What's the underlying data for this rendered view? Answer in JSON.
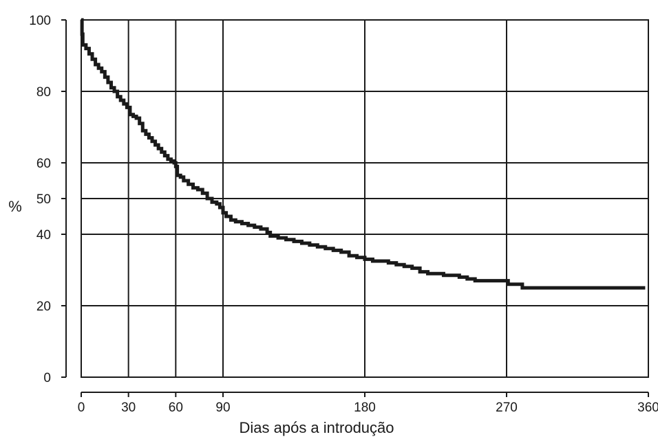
{
  "chart_data": {
    "type": "line",
    "title": "",
    "xlabel": "Dias após a introdução",
    "ylabel": "%",
    "xlim": [
      0,
      360
    ],
    "ylim": [
      0,
      100
    ],
    "x_gridlines": [
      30,
      60,
      90,
      180,
      270
    ],
    "y_gridlines": [
      20,
      40,
      50,
      60,
      80
    ],
    "grid": true,
    "legend": "none",
    "xticks": [
      {
        "value": 0,
        "label": "0"
      },
      {
        "value": 30,
        "label": "30"
      },
      {
        "value": 60,
        "label": "60"
      },
      {
        "value": 90,
        "label": "90"
      },
      {
        "value": 180,
        "label": "180"
      },
      {
        "value": 270,
        "label": "270"
      },
      {
        "value": 360,
        "label": "360"
      }
    ],
    "yticks": [
      {
        "value": 0,
        "label": "0"
      },
      {
        "value": 20,
        "label": "20"
      },
      {
        "value": 40,
        "label": "40"
      },
      {
        "value": 50,
        "label": "50"
      },
      {
        "value": 60,
        "label": "60"
      },
      {
        "value": 80,
        "label": "80"
      },
      {
        "value": 100,
        "label": "100"
      }
    ],
    "series": [
      {
        "color": "#1a1a1a",
        "step": true,
        "points": [
          [
            0,
            100
          ],
          [
            0.5,
            96
          ],
          [
            1,
            93
          ],
          [
            3,
            92
          ],
          [
            5,
            90.5
          ],
          [
            7,
            89
          ],
          [
            9,
            87.5
          ],
          [
            11,
            86.5
          ],
          [
            13,
            85.5
          ],
          [
            15,
            84
          ],
          [
            17,
            82.5
          ],
          [
            19,
            81
          ],
          [
            21,
            80
          ],
          [
            23,
            78.5
          ],
          [
            25,
            77.5
          ],
          [
            27,
            76.5
          ],
          [
            29,
            75.5
          ],
          [
            31,
            73.5
          ],
          [
            33,
            73
          ],
          [
            35,
            72.5
          ],
          [
            37,
            71
          ],
          [
            39,
            69
          ],
          [
            41,
            68
          ],
          [
            43,
            67
          ],
          [
            45,
            66
          ],
          [
            47,
            65
          ],
          [
            49,
            64
          ],
          [
            51,
            63
          ],
          [
            53,
            62
          ],
          [
            55,
            61
          ],
          [
            57,
            60.5
          ],
          [
            59,
            60
          ],
          [
            60,
            59
          ],
          [
            61,
            56.5
          ],
          [
            63,
            56
          ],
          [
            65,
            55
          ],
          [
            68,
            54
          ],
          [
            71,
            53
          ],
          [
            74,
            52.5
          ],
          [
            77,
            51.5
          ],
          [
            80,
            50
          ],
          [
            83,
            49
          ],
          [
            86,
            48.5
          ],
          [
            88,
            47.5
          ],
          [
            90,
            46
          ],
          [
            92,
            45
          ],
          [
            95,
            44
          ],
          [
            98,
            43.5
          ],
          [
            102,
            43
          ],
          [
            106,
            42.5
          ],
          [
            110,
            42
          ],
          [
            114,
            41.5
          ],
          [
            118,
            40.5
          ],
          [
            120,
            39.5
          ],
          [
            125,
            39
          ],
          [
            130,
            38.5
          ],
          [
            135,
            38
          ],
          [
            140,
            37.5
          ],
          [
            145,
            37
          ],
          [
            150,
            36.5
          ],
          [
            155,
            36
          ],
          [
            160,
            35.5
          ],
          [
            165,
            35
          ],
          [
            170,
            34
          ],
          [
            175,
            33.5
          ],
          [
            180,
            33
          ],
          [
            185,
            32.5
          ],
          [
            190,
            32.5
          ],
          [
            195,
            32
          ],
          [
            200,
            31.5
          ],
          [
            205,
            31
          ],
          [
            210,
            30.5
          ],
          [
            215,
            29.5
          ],
          [
            220,
            29
          ],
          [
            225,
            29
          ],
          [
            230,
            28.5
          ],
          [
            240,
            28
          ],
          [
            245,
            27.5
          ],
          [
            250,
            27
          ],
          [
            260,
            27
          ],
          [
            270,
            27
          ],
          [
            271,
            26
          ],
          [
            278,
            26
          ],
          [
            280,
            25
          ],
          [
            290,
            25
          ],
          [
            300,
            25
          ],
          [
            320,
            25
          ],
          [
            340,
            25
          ],
          [
            358,
            25
          ]
        ]
      }
    ]
  }
}
